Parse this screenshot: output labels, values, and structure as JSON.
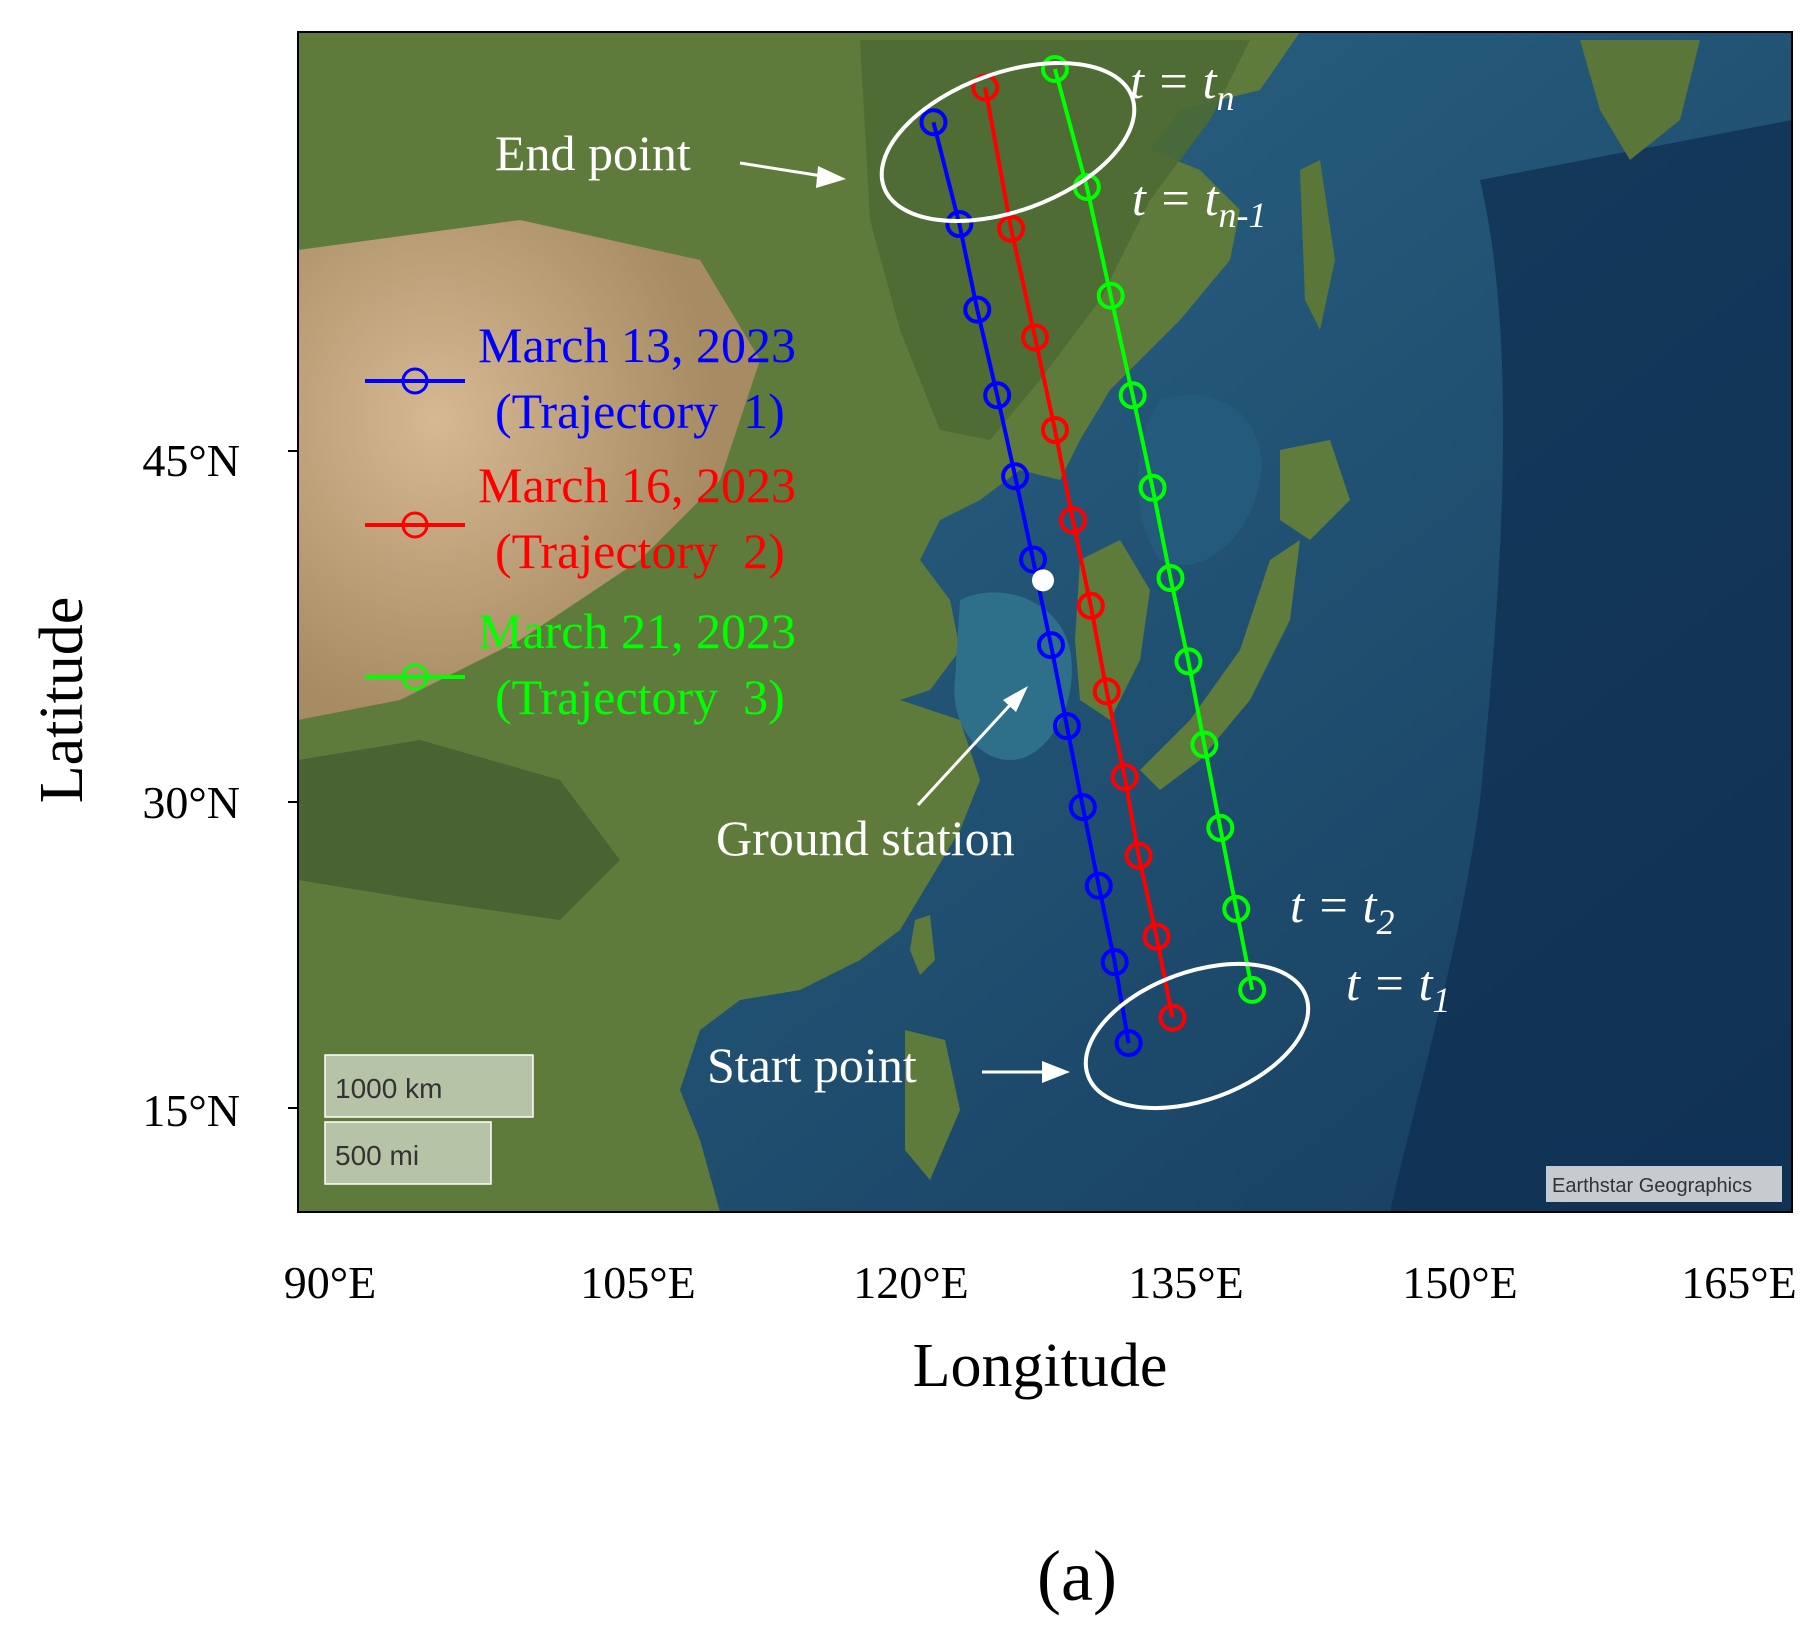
{
  "figure": {
    "panel_label": "(a)"
  },
  "axes": {
    "xlabel": "Longitude",
    "ylabel": "Latitude",
    "x_ticks": [
      "90°E",
      "105°E",
      "120°E",
      "135°E",
      "150°E",
      "165°E"
    ],
    "y_ticks": [
      "45°N",
      "30°N",
      "15°N"
    ]
  },
  "map": {
    "attribution": "Earthstar Geographics",
    "scale_km": "1000 km",
    "scale_mi": "500 mi",
    "ocean_color": "#1d4a6e",
    "land_color": "#5e7a3a"
  },
  "legend": {
    "items": [
      {
        "line1": "March 13, 2023",
        "line2": "(Trajectory  1)",
        "color": "#0000ff"
      },
      {
        "line1": "March 16, 2023",
        "line2": "(Trajectory  2)",
        "color": "#ff0000"
      },
      {
        "line1": "March 21, 2023",
        "line2": "(Trajectory  3)",
        "color": "#00ff00"
      }
    ]
  },
  "annotations": {
    "end_point": "End point",
    "start_point": "Start point",
    "ground_station": "Ground station",
    "t_n": {
      "base": "t = t",
      "sub": "n"
    },
    "t_n1": {
      "base": "t = t",
      "sub": "n-1"
    },
    "t_2": {
      "base": "t = t",
      "sub": "2"
    },
    "t_1": {
      "base": "t = t",
      "sub": "1"
    }
  },
  "chart_data": {
    "type": "line",
    "xlabel": "Longitude",
    "ylabel": "Latitude",
    "xlim": [
      90,
      165
    ],
    "ylim": [
      9,
      60
    ],
    "series": [
      {
        "name": "March 13, 2023 (Trajectory 1)",
        "color": "#0000ff",
        "points": [
          {
            "lon": 131.7,
            "lat": 16.3
          },
          {
            "lon": 131.0,
            "lat": 19.8
          },
          {
            "lon": 130.2,
            "lat": 23.1
          },
          {
            "lon": 129.4,
            "lat": 26.5
          },
          {
            "lon": 128.6,
            "lat": 30.0
          },
          {
            "lon": 127.8,
            "lat": 33.5
          },
          {
            "lon": 126.9,
            "lat": 37.2
          },
          {
            "lon": 126.0,
            "lat": 40.8
          },
          {
            "lon": 125.1,
            "lat": 44.3
          },
          {
            "lon": 124.1,
            "lat": 48.0
          },
          {
            "lon": 123.2,
            "lat": 51.7
          },
          {
            "lon": 121.9,
            "lat": 56.1
          }
        ]
      },
      {
        "name": "March 16, 2023 (Trajectory 2)",
        "color": "#ff0000",
        "points": [
          {
            "lon": 133.9,
            "lat": 17.4
          },
          {
            "lon": 133.1,
            "lat": 20.9
          },
          {
            "lon": 132.2,
            "lat": 24.4
          },
          {
            "lon": 131.5,
            "lat": 27.8
          },
          {
            "lon": 130.6,
            "lat": 31.5
          },
          {
            "lon": 129.8,
            "lat": 35.2
          },
          {
            "lon": 128.9,
            "lat": 38.9
          },
          {
            "lon": 128.0,
            "lat": 42.8
          },
          {
            "lon": 127.0,
            "lat": 46.8
          },
          {
            "lon": 125.8,
            "lat": 51.5
          },
          {
            "lon": 124.5,
            "lat": 57.6
          }
        ]
      },
      {
        "name": "March 21, 2023 (Trajectory 3)",
        "color": "#00ff00",
        "points": [
          {
            "lon": 137.9,
            "lat": 18.6
          },
          {
            "lon": 137.1,
            "lat": 22.1
          },
          {
            "lon": 136.3,
            "lat": 25.6
          },
          {
            "lon": 135.5,
            "lat": 29.2
          },
          {
            "lon": 134.7,
            "lat": 32.8
          },
          {
            "lon": 133.8,
            "lat": 36.4
          },
          {
            "lon": 132.9,
            "lat": 40.3
          },
          {
            "lon": 131.9,
            "lat": 44.3
          },
          {
            "lon": 130.8,
            "lat": 48.6
          },
          {
            "lon": 129.6,
            "lat": 53.3
          },
          {
            "lon": 128.0,
            "lat": 58.4
          }
        ]
      }
    ],
    "ground_station": {
      "lon": 127.4,
      "lat": 36.3
    }
  }
}
